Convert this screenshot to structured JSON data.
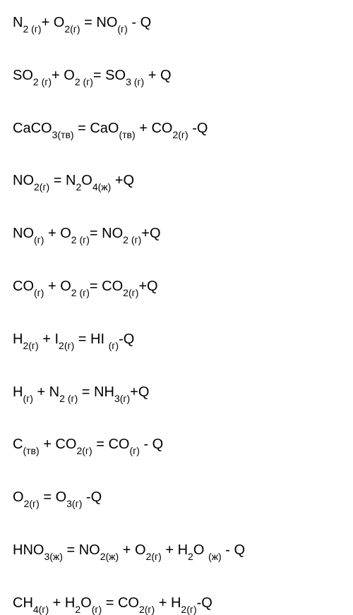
{
  "text_color": "#000000",
  "background_color": "#ffffff",
  "font_size": 20,
  "sub_font_size": 14,
  "line_gap": 48,
  "equations": [
    {
      "parts": [
        {
          "t": "N",
          "sub": "2 (г)"
        },
        {
          "t": "+ O",
          "sub": "2(г)"
        },
        {
          "t": " = NO",
          "sub": "(г)"
        },
        {
          "t": " - Q"
        }
      ]
    },
    {
      "parts": [
        {
          "t": "SO",
          "sub": "2 (г)"
        },
        {
          "t": "+ O",
          "sub": "2 (г)"
        },
        {
          "t": "= SO",
          "sub": "3 (г)"
        },
        {
          "t": " + Q"
        }
      ]
    },
    {
      "parts": [
        {
          "t": "CaCO",
          "sub": "3(тв)"
        },
        {
          "t": " = CaO",
          "sub": "(тв)"
        },
        {
          "t": " + CO",
          "sub": "2(г)"
        },
        {
          "t": " -Q"
        }
      ]
    },
    {
      "parts": [
        {
          "t": "NO",
          "sub": "2(г)"
        },
        {
          "t": " = N",
          "sub": "2"
        },
        {
          "t": "O",
          "sub": "4(ж)"
        },
        {
          "t": " +Q"
        }
      ]
    },
    {
      "parts": [
        {
          "t": "NO",
          "sub": "(г)"
        },
        {
          "t": " +  O",
          "sub": "2 (г)"
        },
        {
          "t": "= NO",
          "sub": "2 (г)"
        },
        {
          "t": "+Q"
        }
      ]
    },
    {
      "parts": [
        {
          "t": "CO",
          "sub": "(г)"
        },
        {
          "t": " + O",
          "sub": "2 (г)"
        },
        {
          "t": "= CO",
          "sub": "2(г)"
        },
        {
          "t": "+Q"
        }
      ]
    },
    {
      "parts": [
        {
          "t": "H",
          "sub": "2(г)"
        },
        {
          "t": " + I",
          "sub": "2(г)"
        },
        {
          "t": " = HI ",
          "sub": "(г)"
        },
        {
          "t": "-Q"
        }
      ]
    },
    {
      "parts": [
        {
          "t": "H",
          "sub": "(г)"
        },
        {
          "t": " +  N",
          "sub": "2 (г)"
        },
        {
          "t": " = NH",
          "sub": "3(г)"
        },
        {
          "t": "+Q"
        }
      ]
    },
    {
      "parts": [
        {
          "t": "C",
          "sub": "(тв)"
        },
        {
          "t": " + CO",
          "sub": "2(г)"
        },
        {
          "t": " = CO",
          "sub": "(г)"
        },
        {
          "t": " - Q"
        }
      ]
    },
    {
      "parts": [
        {
          "t": "O",
          "sub": "2(г)"
        },
        {
          "t": " = O",
          "sub": "3(г)"
        },
        {
          "t": " -Q"
        }
      ]
    },
    {
      "parts": [
        {
          "t": "HNO",
          "sub": "3(ж)"
        },
        {
          "t": " = NO",
          "sub": "2(ж)"
        },
        {
          "t": " + O",
          "sub": "2(г)"
        },
        {
          "t": " + H",
          "sub": "2"
        },
        {
          "t": "O ",
          "sub": "(ж)"
        },
        {
          "t": " - Q"
        }
      ]
    },
    {
      "parts": [
        {
          "t": "CH",
          "sub": "4(г)"
        },
        {
          "t": " + H",
          "sub": "2"
        },
        {
          "t": "O",
          "sub": "(г)"
        },
        {
          "t": " = CO",
          "sub": "2(г)"
        },
        {
          "t": " + H",
          "sub": "2(г)"
        },
        {
          "t": "-Q"
        }
      ]
    }
  ]
}
